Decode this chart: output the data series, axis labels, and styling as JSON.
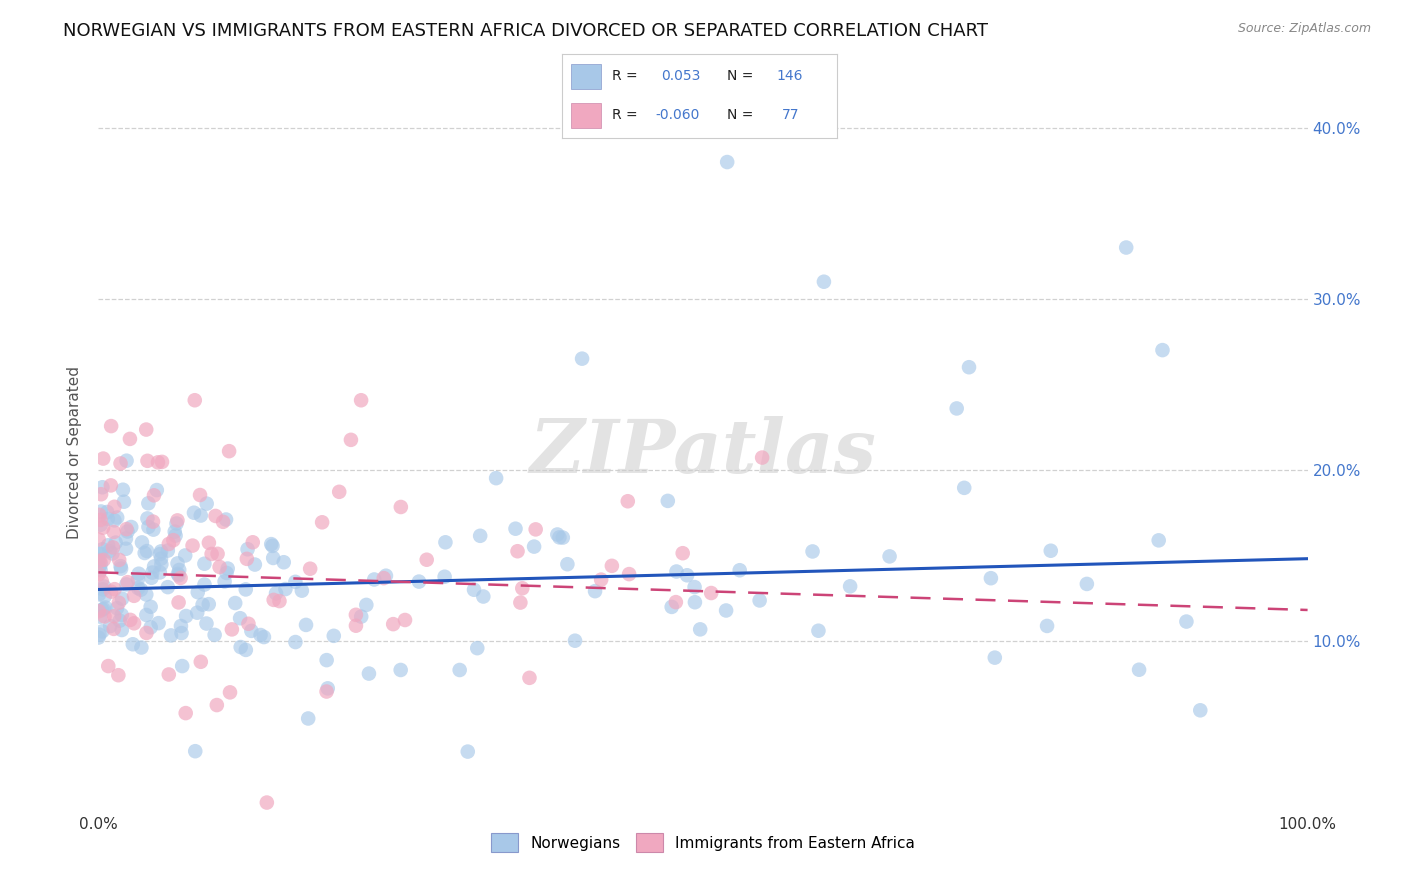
{
  "title": "NORWEGIAN VS IMMIGRANTS FROM EASTERN AFRICA DIVORCED OR SEPARATED CORRELATION CHART",
  "source": "Source: ZipAtlas.com",
  "ylabel": "Divorced or Separated",
  "xlabel": "",
  "watermark": "ZIPatlas",
  "background_color": "#ffffff",
  "grid_color": "#cccccc",
  "norwegian_color": "#a8c8e8",
  "eastern_africa_color": "#f0a8c0",
  "norwegian_line_color": "#2255bb",
  "eastern_africa_line_color": "#cc4477",
  "R_norwegian": 0.053,
  "N_norwegian": 146,
  "R_eastern_africa": -0.06,
  "N_eastern_africa": 77,
  "xlim": [
    0.0,
    1.0
  ],
  "ylim": [
    0.0,
    0.42
  ],
  "yticks": [
    0.1,
    0.2,
    0.3,
    0.4
  ],
  "ytick_labels": [
    "10.0%",
    "20.0%",
    "30.0%",
    "40.0%"
  ],
  "xticks": [
    0.0,
    1.0
  ],
  "xtick_labels": [
    "0.0%",
    "100.0%"
  ],
  "legend_labels": [
    "Norwegians",
    "Immigrants from Eastern Africa"
  ],
  "title_fontsize": 13,
  "axis_fontsize": 11,
  "tick_fontsize": 11,
  "label_color": "#4477cc"
}
